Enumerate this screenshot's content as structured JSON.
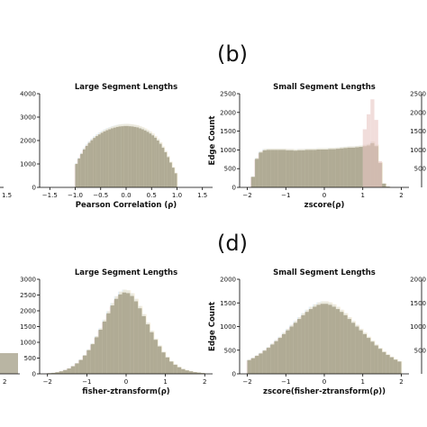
{
  "figure": {
    "panel_labels": [
      "(b)",
      "(d)"
    ],
    "edge_labels": {
      "left_ticks_top": [
        "1.5"
      ],
      "left_ticks_bottom": [
        "2"
      ],
      "right_ticks_top": [
        "2500",
        "2000",
        "1500",
        "1000",
        "500"
      ],
      "right_ticks_bottom": [
        "2000",
        "1500",
        "1000",
        "500"
      ]
    }
  },
  "chart_data": [
    {
      "id": "top_left",
      "type": "bar",
      "title": "Large Segment Lengths",
      "xlabel": "Pearson Correlation (ρ)",
      "ylabel": "",
      "xlim": [
        -1.7,
        1.7
      ],
      "ylim": [
        0,
        4000
      ],
      "xticks": [
        -1.5,
        -1.0,
        -0.5,
        0.0,
        0.5,
        1.0,
        1.5
      ],
      "xtick_labels": [
        "−1.5",
        "−1.0",
        "−0.5",
        "0.0",
        "0.5",
        "1.0",
        "1.5"
      ],
      "yticks": [
        0,
        1000,
        2000,
        3000,
        4000
      ],
      "ytick_labels": [
        "0",
        "1000",
        "2000",
        "3000",
        "4000"
      ],
      "grid": false,
      "series": [
        {
          "color": "#a8a38c",
          "x": [
            -0.975,
            -0.925,
            -0.875,
            -0.825,
            -0.775,
            -0.725,
            -0.675,
            -0.625,
            -0.575,
            -0.525,
            -0.475,
            -0.425,
            -0.375,
            -0.325,
            -0.275,
            -0.225,
            -0.175,
            -0.125,
            -0.075,
            -0.025,
            0.025,
            0.075,
            0.125,
            0.175,
            0.225,
            0.275,
            0.325,
            0.375,
            0.425,
            0.475,
            0.525,
            0.575,
            0.625,
            0.675,
            0.725,
            0.775,
            0.825,
            0.875,
            0.925,
            0.975
          ],
          "values": [
            1000,
            1230,
            1430,
            1620,
            1770,
            1900,
            2010,
            2110,
            2190,
            2260,
            2330,
            2390,
            2440,
            2480,
            2520,
            2550,
            2580,
            2600,
            2610,
            2620,
            2620,
            2610,
            2600,
            2580,
            2560,
            2520,
            2480,
            2430,
            2370,
            2300,
            2220,
            2120,
            2000,
            1860,
            1690,
            1500,
            1290,
            1060,
            840,
            600
          ]
        }
      ]
    },
    {
      "id": "top_right",
      "type": "bar",
      "title": "Small Segment Lengths",
      "xlabel": "zscore(ρ)",
      "ylabel": "Edge Count",
      "xlim": [
        -2.2,
        2.2
      ],
      "ylim": [
        0,
        2500
      ],
      "xticks": [
        -2,
        -1,
        0,
        1,
        2
      ],
      "xtick_labels": [
        "−2",
        "−1",
        "0",
        "1",
        "2"
      ],
      "yticks": [
        0,
        500,
        1000,
        1500,
        2000,
        2500
      ],
      "ytick_labels": [
        "0",
        "500",
        "1000",
        "1500",
        "2000",
        "2500"
      ],
      "grid": false,
      "series": [
        {
          "color": "#a8a38c",
          "x": [
            -1.85,
            -1.75,
            -1.65,
            -1.55,
            -1.45,
            -1.35,
            -1.25,
            -1.15,
            -1.05,
            -0.95,
            -0.85,
            -0.75,
            -0.65,
            -0.55,
            -0.45,
            -0.35,
            -0.25,
            -0.15,
            -0.05,
            0.05,
            0.15,
            0.25,
            0.35,
            0.45,
            0.55,
            0.65,
            0.75,
            0.85,
            0.95,
            1.05,
            1.15,
            1.25,
            1.35,
            1.45,
            1.55,
            1.65
          ],
          "values": [
            280,
            760,
            930,
            990,
            1000,
            1000,
            1000,
            1000,
            1000,
            990,
            990,
            980,
            990,
            990,
            1000,
            1000,
            1000,
            1010,
            1010,
            1010,
            1020,
            1020,
            1030,
            1040,
            1050,
            1060,
            1060,
            1070,
            1080,
            1100,
            1120,
            1180,
            1100,
            650,
            100,
            20
          ]
        },
        {
          "color": "#e7c6c3",
          "x": [
            1.05,
            1.15,
            1.25,
            1.35,
            1.45
          ],
          "values": [
            1550,
            1950,
            2350,
            1800,
            700
          ]
        }
      ]
    },
    {
      "id": "bottom_left",
      "type": "bar",
      "title": "Large Segment Lengths",
      "xlabel": "fisher-ztransform(ρ)",
      "ylabel": "",
      "xlim": [
        -2.2,
        2.2
      ],
      "ylim": [
        0,
        3000
      ],
      "xticks": [
        -2,
        -1,
        0,
        1,
        2
      ],
      "xtick_labels": [
        "−2",
        "−1",
        "0",
        "1",
        "2"
      ],
      "yticks": [
        0,
        500,
        1000,
        1500,
        2000,
        2500,
        3000
      ],
      "ytick_labels": [
        "0",
        "500",
        "1000",
        "1500",
        "2000",
        "2500",
        "3000"
      ],
      "grid": false,
      "series": [
        {
          "color": "#a8a38c",
          "x": [
            -1.95,
            -1.85,
            -1.75,
            -1.65,
            -1.55,
            -1.45,
            -1.35,
            -1.25,
            -1.15,
            -1.05,
            -0.95,
            -0.85,
            -0.75,
            -0.65,
            -0.55,
            -0.45,
            -0.35,
            -0.25,
            -0.15,
            -0.05,
            0.05,
            0.15,
            0.25,
            0.35,
            0.45,
            0.55,
            0.65,
            0.75,
            0.85,
            0.95,
            1.05,
            1.15,
            1.25,
            1.35,
            1.45,
            1.55,
            1.65,
            1.75,
            1.85,
            1.95
          ],
          "values": [
            20,
            30,
            50,
            80,
            120,
            170,
            240,
            330,
            440,
            580,
            750,
            940,
            1160,
            1400,
            1660,
            1920,
            2170,
            2380,
            2520,
            2580,
            2560,
            2470,
            2300,
            2080,
            1830,
            1570,
            1320,
            1080,
            870,
            680,
            520,
            390,
            290,
            210,
            150,
            110,
            80,
            55,
            40,
            25
          ]
        }
      ]
    },
    {
      "id": "bottom_right",
      "type": "bar",
      "title": "Small Segment Lengths",
      "xlabel": "zscore(fisher-ztransform(ρ))",
      "ylabel": "Edge Count",
      "xlim": [
        -2.2,
        2.2
      ],
      "ylim": [
        0,
        2000
      ],
      "xticks": [
        -2,
        -1,
        0,
        1,
        2
      ],
      "xtick_labels": [
        "−2",
        "−1",
        "0",
        "1",
        "2"
      ],
      "yticks": [
        0,
        500,
        1000,
        1500,
        2000
      ],
      "ytick_labels": [
        "0",
        "500",
        "1000",
        "1500",
        "2000"
      ],
      "grid": false,
      "series": [
        {
          "color": "#a8a38c",
          "x": [
            -1.95,
            -1.85,
            -1.75,
            -1.65,
            -1.55,
            -1.45,
            -1.35,
            -1.25,
            -1.15,
            -1.05,
            -0.95,
            -0.85,
            -0.75,
            -0.65,
            -0.55,
            -0.45,
            -0.35,
            -0.25,
            -0.15,
            -0.05,
            0.05,
            0.15,
            0.25,
            0.35,
            0.45,
            0.55,
            0.65,
            0.75,
            0.85,
            0.95,
            1.05,
            1.15,
            1.25,
            1.35,
            1.45,
            1.55,
            1.65,
            1.75,
            1.85,
            1.95
          ],
          "values": [
            290,
            330,
            380,
            430,
            490,
            550,
            620,
            690,
            760,
            840,
            920,
            1000,
            1080,
            1160,
            1240,
            1310,
            1370,
            1420,
            1460,
            1480,
            1480,
            1460,
            1420,
            1370,
            1310,
            1240,
            1160,
            1080,
            1000,
            920,
            840,
            760,
            680,
            600,
            530,
            460,
            400,
            350,
            300,
            260
          ]
        }
      ]
    }
  ]
}
